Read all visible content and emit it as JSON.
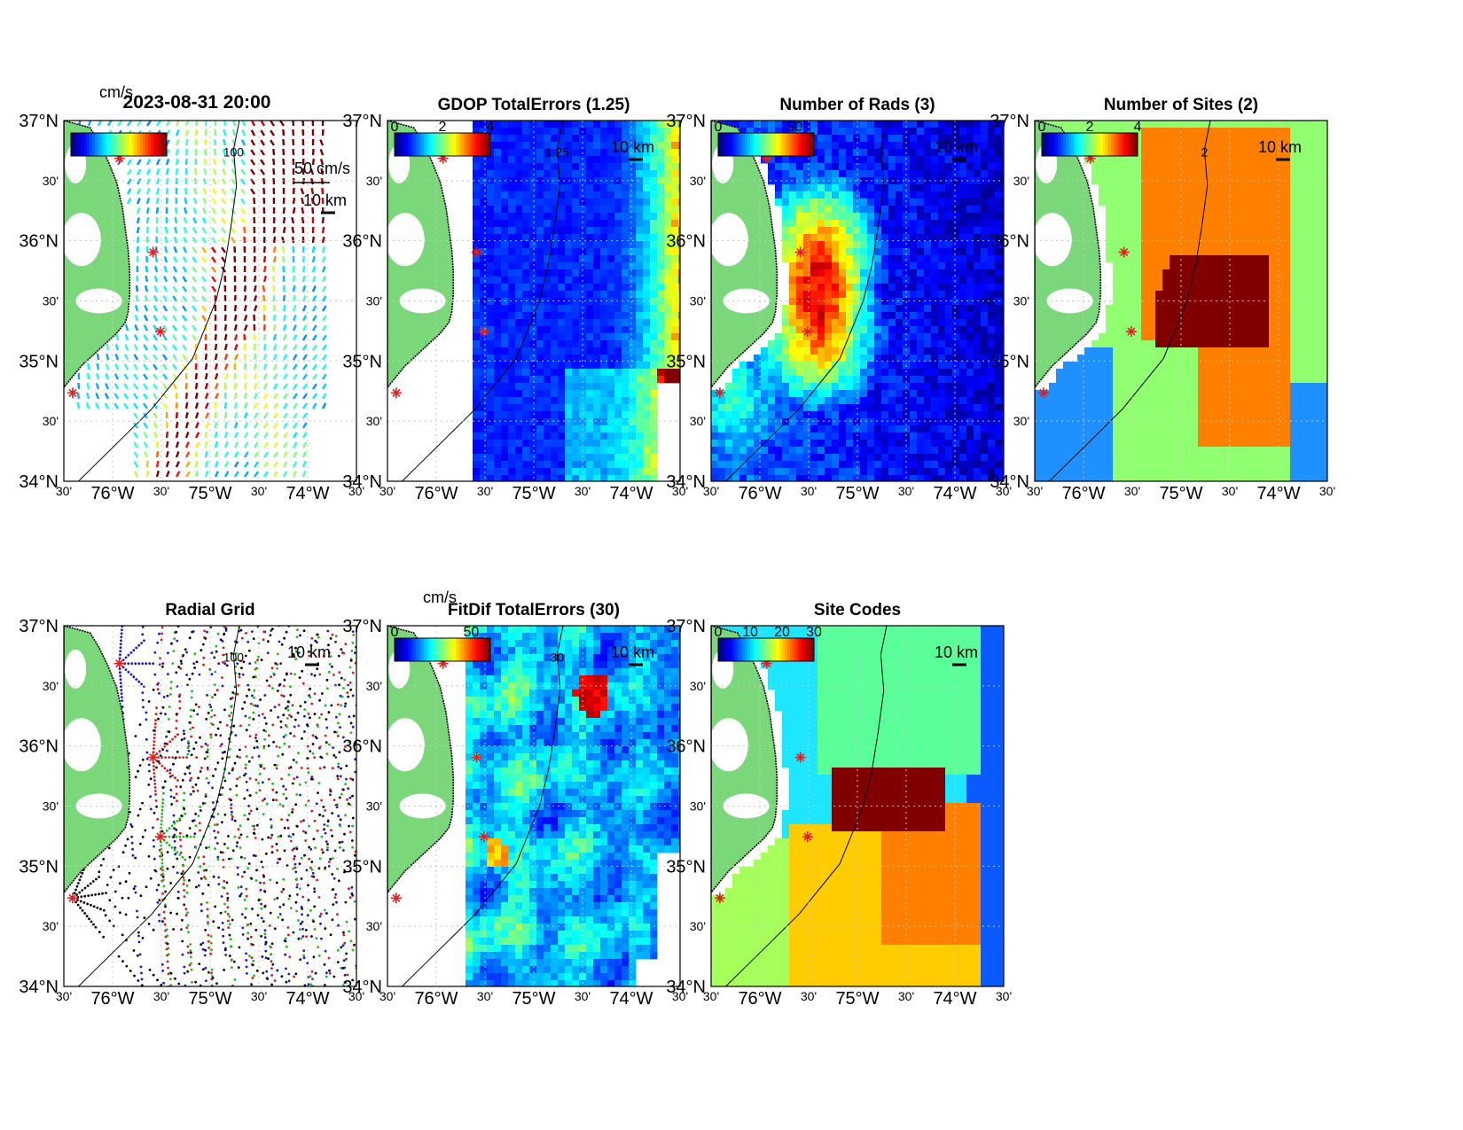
{
  "figure": {
    "timestamp": "2023-08-31 20:00"
  },
  "axes_common": {
    "lat_ticks": [
      "37°N",
      "30'",
      "36°N",
      "30'",
      "35°N",
      "30'",
      "34°N"
    ],
    "lon_ticks": [
      "30'",
      "76°W",
      "30'",
      "75°W",
      "30'",
      "74°W",
      "30'"
    ]
  },
  "colors": {
    "land": "#7ad87a",
    "ocean": "#ffffff",
    "coast": "#000000",
    "site_marker": "#e02020",
    "grid": "#c8c8c8"
  },
  "chart_data": [
    {
      "panel": "totals",
      "type": "heatmap",
      "title": "2023-08-31 20:00",
      "colorbar_unit": "cm/s",
      "vector_scale_label": "50 cm/s",
      "scale_bar_label": "10 km",
      "contour_label": "100",
      "xlim": [
        -76.5,
        -73.5
      ],
      "ylim": [
        34,
        37
      ]
    },
    {
      "panel": "gdop",
      "type": "heatmap",
      "title": "GDOP TotalErrors (1.25)",
      "colorbar_ticks": [
        "0",
        "2",
        "4"
      ],
      "scale_bar_label": "10 km",
      "contour_label": "1.25",
      "xlim": [
        -76.5,
        -73.5
      ],
      "ylim": [
        34,
        37
      ]
    },
    {
      "panel": "nrads",
      "type": "heatmap",
      "title": "Number of Rads (3)",
      "colorbar_ticks": [
        "0",
        "50"
      ],
      "scale_bar_label": "10 km",
      "contour_label": "3",
      "xlim": [
        -76.5,
        -73.5
      ],
      "ylim": [
        34,
        37
      ]
    },
    {
      "panel": "nsites",
      "type": "heatmap",
      "title": "Number of Sites (2)",
      "colorbar_ticks": [
        "0",
        "2",
        "4"
      ],
      "scale_bar_label": "10 km",
      "contour_label": "2",
      "xlim": [
        -76.5,
        -73.5
      ],
      "ylim": [
        34,
        37
      ]
    },
    {
      "panel": "radgrid",
      "type": "scatter",
      "title": "Radial Grid",
      "scale_bar_label": "10 km",
      "contour_label": "100",
      "xlim": [
        -76.5,
        -73.5
      ],
      "ylim": [
        34,
        37
      ]
    },
    {
      "panel": "fitdif",
      "type": "heatmap",
      "title": "FitDif TotalErrors (30)",
      "colorbar_unit": "cm/s",
      "colorbar_ticks": [
        "0",
        "50"
      ],
      "scale_bar_label": "10 km",
      "contour_label": "30",
      "xlim": [
        -76.5,
        -73.5
      ],
      "ylim": [
        34,
        37
      ]
    },
    {
      "panel": "sitecodes",
      "type": "heatmap",
      "title": "Site Codes",
      "colorbar_ticks": [
        "0",
        "10",
        "20",
        "30"
      ],
      "scale_bar_label": "10 km",
      "xlim": [
        -76.5,
        -73.5
      ],
      "ylim": [
        34,
        37
      ]
    }
  ]
}
